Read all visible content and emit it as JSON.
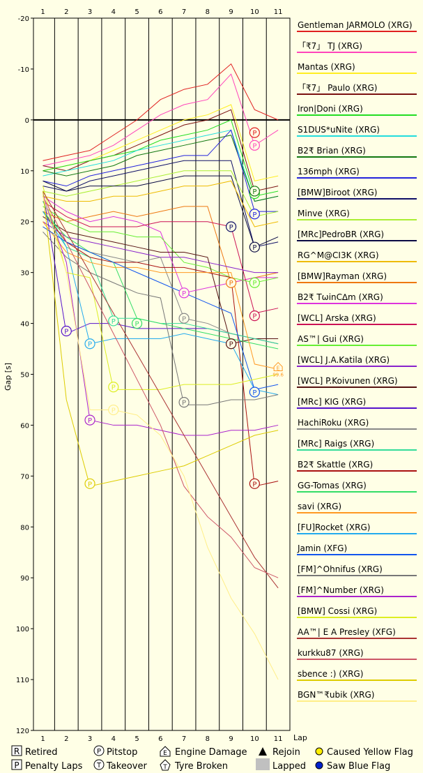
{
  "chart_data": {
    "type": "line",
    "xlabel": "Lap",
    "ylabel": "Gap [s]",
    "x_ticks": [
      1,
      2,
      3,
      4,
      5,
      6,
      7,
      8,
      9,
      10,
      11
    ],
    "y_ticks": [
      -20,
      -10,
      0,
      10,
      20,
      30,
      40,
      50,
      60,
      70,
      80,
      90,
      100,
      110,
      120
    ],
    "xlim": [
      0.6,
      11.5
    ],
    "ylim": [
      -20,
      120
    ],
    "y_inverted": true,
    "grid": "vertical",
    "legend_position": "right",
    "series": [
      {
        "name": "Gentleman JARMOLO (XRG)",
        "color": "#e02020",
        "values": [
          8,
          7,
          6,
          3,
          0,
          -4,
          -6,
          -7,
          -11,
          -2,
          0
        ],
        "pit_lap": 10,
        "pit_gap": 2.5
      },
      {
        "name": "「₹7」 TJ (XRG)",
        "color": "#ff44bb",
        "values": [
          9,
          8,
          7,
          5,
          2,
          -1,
          -3,
          -4,
          -9,
          5,
          2
        ],
        "pit_lap": 10,
        "pit_gap": 5
      },
      {
        "name": "Mantas (XRG)",
        "color": "#ffee22",
        "values": [
          10,
          9,
          8,
          6,
          4,
          2,
          0,
          -1,
          -3,
          12,
          11
        ]
      },
      {
        "name": "「₹7」 Paulo (XRG)",
        "color": "#7a1010",
        "values": [
          9,
          10,
          8,
          7,
          5,
          3,
          1,
          0,
          -2,
          14,
          13
        ]
      },
      {
        "name": "Iron|Doni (XRG)",
        "color": "#22dd22",
        "values": [
          10,
          9,
          8,
          7,
          6,
          4,
          3,
          2,
          0,
          15,
          14
        ],
        "pit_lap": 10,
        "pit_gap": 14.5
      },
      {
        "name": "S1DUS*uNite (XRG)",
        "color": "#22dddd",
        "values": [
          11,
          10,
          9,
          8,
          6,
          5,
          4,
          3,
          2,
          16,
          15
        ]
      },
      {
        "name": "B2₹ Brian (XRG)",
        "color": "#117711",
        "values": [
          10,
          11,
          10,
          9,
          7,
          6,
          5,
          4,
          3,
          16,
          15
        ],
        "pit_lap": 10,
        "pit_gap": 14
      },
      {
        "name": "136mph (XRG)",
        "color": "#2222dd",
        "values": [
          12,
          13,
          11,
          10,
          9,
          8,
          7,
          7,
          2,
          18,
          18
        ],
        "pit_lap": 10,
        "pit_gap": 18.5
      },
      {
        "name": "[BMW]Biroot (XRG)",
        "color": "#0e0e66",
        "values": [
          13,
          14,
          12,
          11,
          10,
          9,
          8,
          8,
          8,
          25,
          24
        ],
        "pit_lap": 9,
        "pit_gap": 21
      },
      {
        "name": "Minve (XRG)",
        "color": "#aaee33",
        "values": [
          14,
          15,
          14,
          13,
          12,
          11,
          10,
          10,
          10,
          19,
          18
        ]
      },
      {
        "name": "[MRc]PedroBR (XRG)",
        "color": "#0a0a44",
        "values": [
          12,
          14,
          13,
          13,
          13,
          12,
          11,
          11,
          11,
          25,
          23
        ],
        "pit_lap": 10,
        "pit_gap": 25
      },
      {
        "name": "RG^M@CI3K (XRG)",
        "color": "#eebb00",
        "values": [
          15,
          16,
          16,
          15,
          15,
          14,
          13,
          13,
          12,
          21,
          20
        ]
      },
      {
        "name": "[BMW]Rayman (XRG)",
        "color": "#ee7711",
        "values": [
          18,
          20,
          19,
          18,
          19,
          18,
          17,
          17,
          32,
          31,
          30
        ],
        "pit_lap": 9,
        "pit_gap": 32
      },
      {
        "name": "B2₹ TωinC∆m (XRG)",
        "color": "#dd33dd",
        "values": [
          15,
          18,
          20,
          19,
          20,
          22,
          34,
          33,
          32,
          31,
          31
        ],
        "pit_lap": 7,
        "pit_gap": 34
      },
      {
        "name": "[WCL] Arska (XRG)",
        "color": "#cc1155",
        "values": [
          16,
          19,
          21,
          21,
          21,
          20,
          20,
          20,
          21,
          38,
          37
        ],
        "pit_lap": 10,
        "pit_gap": 38.5
      },
      {
        "name": "AS™| Gui (XRG)",
        "color": "#66ee33",
        "values": [
          17,
          20,
          22,
          22,
          23,
          23,
          28,
          29,
          31,
          32,
          31
        ],
        "pit_lap": 10,
        "pit_gap": 32
      },
      {
        "name": "[WCL] J.A.Katila (XRG)",
        "color": "#8822cc",
        "values": [
          20,
          23,
          24,
          25,
          26,
          27,
          27,
          28,
          29,
          30,
          30
        ]
      },
      {
        "name": "[WCL] P.Koivunen (XRG)",
        "color": "#551111",
        "values": [
          19,
          22,
          23,
          24,
          25,
          26,
          26,
          27,
          44,
          43,
          43
        ],
        "pit_lap": 9,
        "pit_gap": 44
      },
      {
        "name": "[MRc] KIG (XRG)",
        "color": "#5511cc",
        "values": [
          14,
          42,
          40,
          40,
          41,
          41,
          41,
          41,
          42,
          43,
          44
        ],
        "pit_lap": 2,
        "pit_gap": 41.5
      },
      {
        "name": "HachiRoku (XRG)",
        "color": "#888888",
        "values": [
          21,
          24,
          26,
          27,
          28,
          27,
          39,
          40,
          42,
          43,
          44
        ],
        "pit_lap": 7,
        "pit_gap": 39
      },
      {
        "name": "[MRc] Raigs (XRG)",
        "color": "#33dd99",
        "values": [
          16,
          25,
          27,
          39,
          39,
          40,
          40,
          41,
          42,
          43,
          44
        ],
        "pit_lap": 4,
        "pit_gap": 39.5
      },
      {
        "name": "B2₹ Skattle (XRG)",
        "color": "#aa1111",
        "values": [
          18,
          24,
          27,
          28,
          28,
          29,
          29,
          30,
          31,
          72,
          71
        ],
        "pit_lap": 10,
        "pit_gap": 71.5
      },
      {
        "name": "GG-Tomas (XRG)",
        "color": "#33dd66",
        "values": [
          18,
          23,
          26,
          28,
          39,
          40,
          41,
          42,
          43,
          44,
          45
        ],
        "pit_lap": 5,
        "pit_gap": 40
      },
      {
        "name": "savi (XRG)",
        "color": "#ff9922",
        "values": [
          20,
          26,
          28,
          29,
          29,
          30,
          30,
          30,
          30,
          48,
          49
        ],
        "engine_lap": 11,
        "engine_gap": 48.5
      },
      {
        "name": "[FU]Rocket (XRG)",
        "color": "#22aaee",
        "values": [
          18,
          25,
          44,
          43,
          43,
          43,
          42,
          43,
          44,
          53,
          54
        ],
        "pit_lap": 3,
        "pit_gap": 44
      },
      {
        "name": "Jamin (XFG)",
        "color": "#1155ee",
        "values": [
          21,
          24,
          26,
          28,
          30,
          32,
          34,
          36,
          38,
          53,
          52
        ],
        "pit_lap": 10,
        "pit_gap": 53.5
      },
      {
        "name": "[FM]^Ohnifus (XRG)",
        "color": "#777777",
        "values": [
          22,
          27,
          30,
          32,
          34,
          35,
          56,
          56,
          55,
          55,
          54
        ],
        "pit_lap": 7,
        "pit_gap": 55.5
      },
      {
        "name": "[FM]^Number (XRG)",
        "color": "#aa22cc",
        "values": [
          15,
          28,
          59,
          60,
          60,
          61,
          62,
          62,
          61,
          61,
          60
        ],
        "pit_lap": 3,
        "pit_gap": 59
      },
      {
        "name": "[BMW] Cossi (XRG)",
        "color": "#ddee22",
        "values": [
          13,
          30,
          31,
          53,
          53,
          53,
          52,
          52,
          52,
          51,
          50
        ],
        "pit_lap": 4,
        "pit_gap": 52.5
      },
      {
        "name": "AA™| E A Presley (XFG)",
        "color": "#aa3333",
        "values": [
          14,
          22,
          30,
          38,
          46,
          54,
          62,
          70,
          78,
          86,
          92
        ]
      },
      {
        "name": "kurkku87 (XRG)",
        "color": "#cc5566",
        "values": [
          15,
          24,
          33,
          42,
          51,
          60,
          72,
          78,
          82,
          88,
          90
        ]
      },
      {
        "name": "sbence :) (XRG)",
        "color": "#ddcc00",
        "values": [
          14,
          55,
          72,
          71,
          70,
          69,
          68,
          66,
          64,
          62,
          61
        ],
        "pit_lap": 3,
        "pit_gap": 71.5
      },
      {
        "name": "BGN™₹ubik (XRG)",
        "color": "#ffee88",
        "values": [
          15,
          30,
          57,
          57,
          58,
          62,
          70,
          84,
          94,
          101,
          110
        ],
        "pit_lap": 4,
        "pit_gap": 57
      }
    ]
  },
  "key": {
    "retired": "Retired",
    "penalty_laps": "Penalty Laps",
    "pitstop": "Pitstop",
    "takeover": "Takeover",
    "engine_damage": "Engine Damage",
    "tyre_broken": "Tyre Broken",
    "rejoin": "Rejoin",
    "lapped": "Lapped",
    "caused_yellow_flag": "Caused Yellow Flag",
    "saw_blue_flag": "Saw Blue Flag",
    "icon_retired": "R",
    "icon_penalty": "P",
    "icon_pitstop": "P",
    "icon_takeover": "T",
    "icon_engine": "E",
    "icon_tyre": "T",
    "engine_sub": "99.6"
  }
}
